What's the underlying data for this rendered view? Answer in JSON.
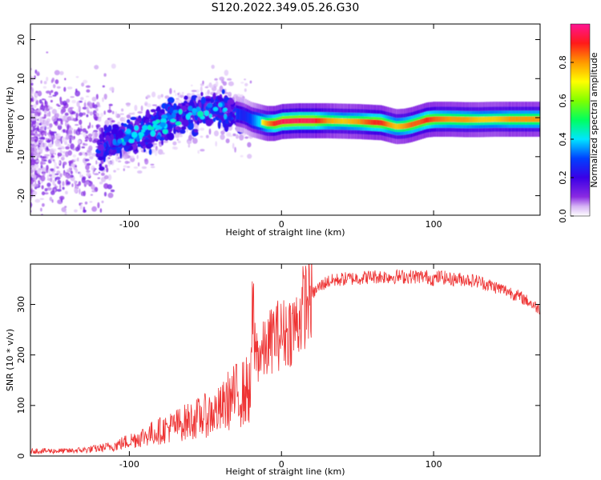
{
  "figure": {
    "title": "S120.2022.349.05.26.G30"
  },
  "chart_data": [
    {
      "type": "heatmap",
      "xlabel": "Height of straight line (km)",
      "ylabel": "Frequency (Hz)",
      "xlim": [
        -165,
        170
      ],
      "ylim": [
        -25,
        24
      ],
      "xticks": [
        -100,
        0,
        100
      ],
      "yticks": [
        -20,
        -10,
        0,
        10,
        20
      ],
      "colorbar": {
        "label": "Normalized spectral amplitude",
        "range": [
          0,
          1
        ],
        "ticks": [
          0.0,
          0.2,
          0.4,
          0.6,
          0.8
        ]
      },
      "ridge": {
        "x": [
          -165,
          -140,
          -120,
          -110,
          -100,
          -90,
          -80,
          -70,
          -60,
          -50,
          -40,
          -30,
          -25,
          -20,
          -15,
          -10,
          -5,
          0,
          10,
          20,
          30,
          40,
          50,
          60,
          65,
          70,
          75,
          80,
          85,
          90,
          95,
          100,
          110,
          120,
          130,
          140,
          150,
          160,
          168
        ],
        "freq": [
          -6,
          -7,
          -8,
          -6,
          -5,
          -4,
          -2,
          0,
          1,
          2,
          2,
          1,
          0.5,
          -0.5,
          -1,
          -1.5,
          -1.5,
          -1,
          -0.8,
          -0.8,
          -0.8,
          -0.9,
          -1.0,
          -1.2,
          -1.3,
          -1.8,
          -2.3,
          -2.2,
          -1.8,
          -1.2,
          -0.6,
          -0.4,
          -0.4,
          -0.5,
          -0.5,
          -0.4,
          -0.4,
          -0.4,
          -0.4
        ],
        "amplitude": [
          0.1,
          0.12,
          0.25,
          0.35,
          0.4,
          0.45,
          0.5,
          0.55,
          0.5,
          0.5,
          0.45,
          0.45,
          0.4,
          0.5,
          0.65,
          0.8,
          0.9,
          0.95,
          0.95,
          0.95,
          0.8,
          0.75,
          0.8,
          0.9,
          0.9,
          0.8,
          0.75,
          0.8,
          0.85,
          0.85,
          0.9,
          0.85,
          0.8,
          0.8,
          0.75,
          0.75,
          0.8,
          0.8,
          0.8
        ]
      }
    },
    {
      "type": "line",
      "xlabel": "Height of straight line (km)",
      "ylabel": "SNR (10 * v/v)",
      "xlim": [
        -165,
        170
      ],
      "ylim": [
        0,
        380
      ],
      "xticks": [
        -100,
        0,
        100
      ],
      "yticks": [
        0,
        100,
        200,
        300
      ],
      "color": "#ee3333",
      "series": [
        {
          "x": [
            -165,
            -150,
            -140,
            -130,
            -120,
            -110,
            -100,
            -90,
            -80,
            -70,
            -60,
            -50,
            -40,
            -35,
            -30,
            -25,
            -20,
            -18,
            -15,
            -10,
            -5,
            0,
            5,
            10,
            15,
            20,
            25,
            30,
            40,
            50,
            60,
            70,
            80,
            90,
            95,
            100,
            105,
            110,
            120,
            130,
            140,
            150,
            160,
            170
          ],
          "values": [
            10,
            10,
            10,
            12,
            15,
            20,
            30,
            40,
            50,
            60,
            70,
            80,
            90,
            110,
            120,
            125,
            135,
            220,
            200,
            210,
            240,
            240,
            250,
            260,
            300,
            320,
            335,
            345,
            350,
            352,
            355,
            355,
            355,
            355,
            355,
            350,
            355,
            350,
            350,
            345,
            335,
            325,
            310,
            290
          ]
        }
      ]
    }
  ]
}
